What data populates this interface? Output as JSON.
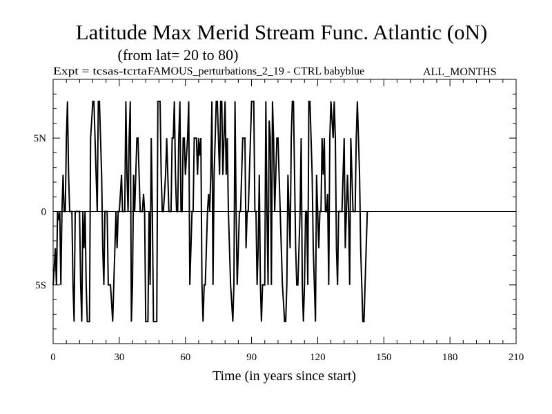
{
  "chart_data": {
    "type": "line",
    "title": "Latitude Max Merid Stream Func. Atlantic (oN)",
    "subtitle": "(from lat= 20 to 80)",
    "expt_left": "Expt = tcsas-tcrta",
    "expt_mid": "FAMOUS_perturbations_2_19 - CTRL babyblue",
    "expt_right": "ALL_MONTHS",
    "xlabel": "Time (in years since start)",
    "ylabel": "",
    "xlim": [
      0,
      210
    ],
    "ylim": [
      -9,
      9
    ],
    "x_ticks": [
      0,
      30,
      60,
      90,
      120,
      150,
      180,
      210
    ],
    "x_tick_labels": [
      "0",
      "30",
      "60",
      "90",
      "120",
      "150",
      "180",
      "210"
    ],
    "y_ticks": [
      -5,
      0,
      5
    ],
    "y_tick_labels": [
      "5S",
      "0",
      "5N"
    ],
    "grid": false,
    "line_color": "#000000",
    "x_start": 0,
    "x_step": 0.5,
    "values": [
      -5,
      -3.8,
      -2.5,
      -5,
      0,
      -0.6,
      0,
      -5,
      0,
      2.5,
      0,
      0,
      5,
      7.5,
      2.5,
      0,
      0,
      0,
      -5,
      -7.5,
      0,
      0,
      0,
      0,
      0,
      -5,
      -7.5,
      0,
      -2.5,
      0,
      -5,
      -7.5,
      -7.5,
      -7.5,
      5,
      6.2,
      7.5,
      7.5,
      5,
      2.5,
      0,
      7.5,
      7.5,
      5,
      2.5,
      -2.5,
      -5,
      0,
      0,
      0,
      -5,
      -5,
      -5,
      -6.2,
      -7.5,
      -5,
      -2.5,
      0,
      -2.5,
      0,
      0,
      1.2,
      2.5,
      0,
      0,
      0,
      7.5,
      2.5,
      0,
      5,
      7.5,
      -7.5,
      -5,
      2.5,
      0,
      2.5,
      5,
      5,
      2.5,
      0,
      0,
      0,
      1.2,
      0,
      -7.5,
      -7.5,
      -7.5,
      0,
      -5,
      5,
      0,
      -7.5,
      -7.5,
      -7.5,
      -7.5,
      7.5,
      7.5,
      7.5,
      2.5,
      0,
      0,
      1.2,
      2.5,
      5,
      2.5,
      0,
      0,
      0,
      5,
      5,
      7.5,
      2.5,
      0,
      0,
      5,
      7.5,
      0,
      0,
      5,
      5,
      2.5,
      3.8,
      5,
      7.5,
      -5,
      -2.5,
      0,
      0,
      5,
      5,
      5,
      2.5,
      5,
      3.8,
      5,
      -5,
      -7.5,
      -5,
      -5,
      -2.5,
      0,
      1.2,
      0,
      2.5,
      7.5,
      -5,
      2.5,
      5,
      7.5,
      7.5,
      5,
      2.5,
      7.5,
      7.5,
      2.5,
      5,
      7.5,
      2.5,
      5,
      0,
      -2.5,
      -5,
      -6.2,
      -7.5,
      -5,
      7.5,
      0,
      -5,
      -2.5,
      0,
      0,
      2.5,
      5,
      5,
      5,
      -2.5,
      0,
      0,
      2.5,
      5,
      7.5,
      7.5,
      7.5,
      0,
      0,
      -5,
      -2.5,
      2.5,
      -5,
      -7.5,
      -5,
      -5,
      -5,
      7.5,
      0,
      -5,
      6.2,
      5,
      -5,
      7.5,
      5,
      0,
      2.5,
      5,
      5,
      2.5,
      0,
      -2.5,
      -5,
      -6.2,
      -7.5,
      -7.5,
      -5,
      2.5,
      0,
      -2.5,
      5,
      7.5,
      7.5,
      2.5,
      -2.5,
      -5,
      -5,
      -2.5,
      0,
      5,
      -5,
      -7.5,
      -5,
      0,
      0,
      -5,
      7.5,
      7.5,
      5,
      2.5,
      -2.5,
      -5,
      -7.5,
      2.5,
      0,
      -2.5,
      0,
      0,
      5,
      2.5,
      5,
      0,
      0,
      1.2,
      -5,
      5,
      7.5,
      6.2,
      5,
      7.5,
      5,
      -2.5,
      -5,
      0,
      0,
      0,
      0,
      2.5,
      5,
      -2.5,
      0,
      2.5,
      0,
      -5,
      5,
      2.5,
      0,
      0,
      0,
      5,
      7.5,
      5,
      2.5,
      -2.5,
      -5,
      -7.5,
      -7.5,
      -5,
      -2.5,
      0
    ],
    "mean_line": 0
  }
}
